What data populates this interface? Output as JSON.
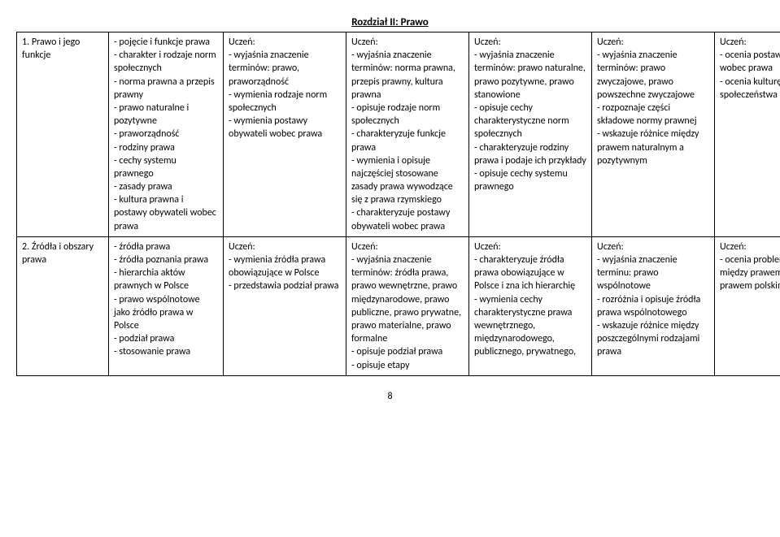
{
  "section_title": "Rozdział II: Prawo",
  "page_number": "8",
  "rows": [
    {
      "label": "1. Prawo i jego funkcje",
      "desc": "- pojęcie i funkcje prawa\n- charakter i rodzaje norm społecznych\n- norma prawna a przepis prawny\n- prawo naturalne i pozytywne\n- praworządność\n- rodziny prawa\n- cechy systemu prawnego\n- zasady prawa\n- kultura prawna i postawy obywateli wobec prawa",
      "c1": "Uczeń:\n- wyjaśnia znaczenie terminów: prawo, praworządność\n- wymienia rodzaje norm społecznych\n- wymienia postawy obywateli wobec prawa",
      "c2": "Uczeń:\n- wyjaśnia znaczenie terminów: norma prawna, przepis prawny, kultura prawna\n- opisuje rodzaje norm społecznych\n- charakteryzuje funkcje prawa\n- wymienia i opisuje najczęściej stosowane zasady prawa wywodzące się z prawa rzymskiego\n- charakteryzuje postawy obywateli wobec prawa",
      "c3": "Uczeń:\n- wyjaśnia znaczenie terminów: prawo naturalne, prawo pozytywne, prawo stanowione\n- opisuje cechy charakterystyczne norm społecznych\n- charakteryzuje rodziny prawa i podaje ich przykłady\n- opisuje cechy systemu prawnego",
      "c4": "Uczeń:\n- wyjaśnia znaczenie terminów: prawo zwyczajowe, prawo powszechne zwyczajowe\n- rozpoznaje części składowe normy prawnej\n- wskazuje różnice między prawem naturalnym a pozytywnym",
      "c5": "Uczeń:\n- ocenia postawy obywateli wobec prawa\n- ocenia kulturę prawną społeczeństwa w Polsce"
    },
    {
      "label": "2. Źródła i obszary prawa",
      "desc": "- źródła prawa\n- źródła poznania prawa\n- hierarchia aktów prawnych w Polsce\n- prawo wspólnotowe jako źródło prawa w Polsce\n- podział prawa\n- stosowanie prawa",
      "c1": "Uczeń:\n- wymienia źródła prawa obowiązujące w Polsce\n- przedstawia podział prawa",
      "c2": "Uczeń:\n- wyjaśnia znaczenie terminów: źródła prawa, prawo wewnętrzne, prawo międzynarodowe, prawo publiczne, prawo prywatne, prawo materialne, prawo formalne\n- opisuje podział prawa\n- opisuje etapy",
      "c3": "Uczeń:\n- charakteryzuje źródła prawa obowiązujące w Polsce i zna ich hierarchię\n- wymienia cechy charakterystyczne prawa wewnętrznego, międzynarodowego, publicznego, prywatnego,",
      "c4": "Uczeń:\n- wyjaśnia znaczenie terminu: prawo wspólnotowe\n- rozróżnia i opisuje źródła prawa wspólnotowego\n- wskazuje różnice między poszczególnymi rodzajami prawa",
      "c5": "Uczeń:\n- ocenia problem zależności między prawem unijnym a prawem polskim"
    }
  ]
}
